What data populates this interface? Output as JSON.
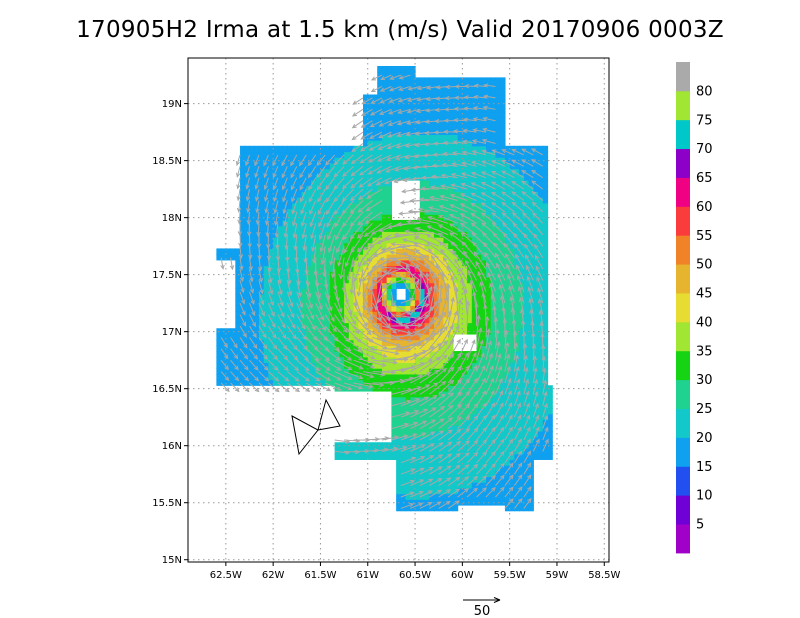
{
  "chart_data": {
    "type": "heatmap",
    "title": "170905H2 Irma at 1.5 km (m/s) Valid 20170906 0003Z",
    "x_ticks": [
      "62.5W",
      "62W",
      "61.5W",
      "61W",
      "60.5W",
      "60W",
      "59.5W",
      "59W",
      "58.5W"
    ],
    "y_ticks": [
      "19N",
      "18.5N",
      "18N",
      "17.5N",
      "17N",
      "16.5N",
      "16N",
      "15.5N",
      "15N"
    ],
    "xlim": [
      -62.9,
      -58.45
    ],
    "ylim": [
      14.98,
      19.4
    ],
    "grid": true,
    "storm_center": {
      "lon": -60.65,
      "lat": 17.33
    },
    "rmw_deg": 0.22,
    "vmax_ms": 68,
    "colorbar": {
      "labels": [
        "5",
        "10",
        "15",
        "20",
        "25",
        "30",
        "35",
        "40",
        "45",
        "50",
        "55",
        "60",
        "65",
        "70",
        "75",
        "80"
      ],
      "colors": [
        "#a000c8",
        "#6f00d6",
        "#2250f0",
        "#0fa0f0",
        "#13c8c8",
        "#20d290",
        "#14d414",
        "#a0e632",
        "#e6dc32",
        "#e6b42e",
        "#f08228",
        "#fa3c3c",
        "#f00082",
        "#8c00c8",
        "#00c8c8",
        "#a0e632",
        "#aaaaaa"
      ]
    },
    "vector_legend": {
      "value": "50",
      "units": "m/s"
    }
  }
}
